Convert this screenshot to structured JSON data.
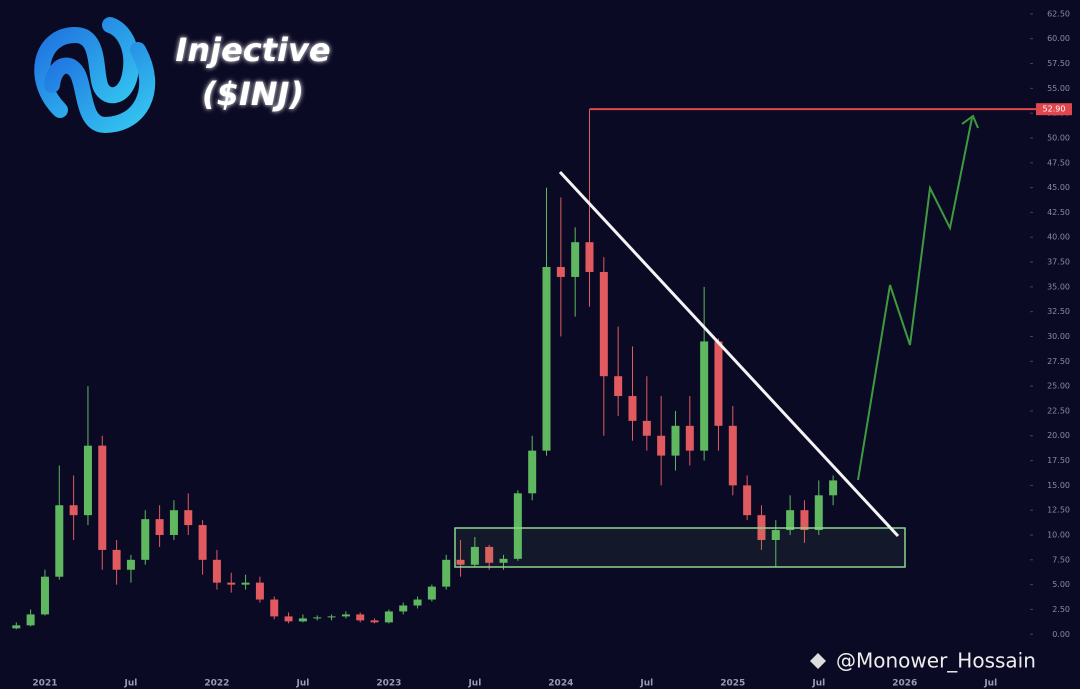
{
  "chart_data": {
    "type": "candlestick",
    "title": "Injective",
    "subtitle": "($INJ)",
    "watermark": "@Monower_Hossain",
    "up_color": "#5fb85f",
    "down_color": "#e05a5f",
    "categories": [
      null,
      null,
      "2021",
      null,
      null,
      null,
      null,
      null,
      "Jul",
      null,
      null,
      null,
      null,
      null,
      "2022",
      null,
      null,
      null,
      null,
      null,
      "Jul",
      null,
      null,
      null,
      null,
      null,
      "2023",
      null,
      null,
      null,
      null,
      null,
      "Jul",
      null,
      null,
      null,
      null,
      null,
      "2024",
      null,
      null,
      null,
      null,
      null,
      "Jul",
      null,
      null,
      null,
      null,
      null,
      "2025",
      null,
      null,
      null,
      null,
      null,
      "Jul",
      null,
      null,
      null,
      null,
      null,
      "2026",
      null,
      null,
      null,
      null,
      null,
      "Jul"
    ],
    "open": [
      0.6,
      0.9,
      2.0,
      5.8,
      13.0,
      12.0,
      19.0,
      8.5,
      6.5,
      7.5,
      11.6,
      10.0,
      12.5,
      11.0,
      7.5,
      5.2,
      5.0,
      5.2,
      3.5,
      1.8,
      1.3,
      1.6,
      1.7,
      1.8,
      2.0,
      1.4,
      1.2,
      2.3,
      2.9,
      3.5,
      4.8,
      7.5,
      7.0,
      8.8,
      7.2,
      7.6,
      14.2,
      18.5,
      37.0,
      36.0,
      39.5,
      36.5,
      26.0,
      24.0,
      21.5,
      20.0,
      18.0,
      21.0,
      18.5,
      29.5,
      21.0,
      15.0,
      12.0,
      9.5,
      10.5,
      12.5,
      10.5,
      14.0,
      null,
      null,
      null,
      null,
      null,
      null,
      null,
      null,
      null,
      null,
      null
    ],
    "high": [
      1.2,
      2.5,
      6.5,
      17.0,
      16.0,
      25.0,
      20.0,
      9.5,
      8.0,
      12.5,
      13.0,
      13.5,
      14.2,
      11.5,
      8.5,
      6.2,
      6.0,
      5.8,
      3.8,
      2.2,
      2.0,
      1.9,
      2.0,
      2.3,
      2.2,
      1.6,
      2.5,
      3.2,
      3.8,
      5.0,
      8.0,
      9.5,
      9.8,
      9.0,
      8.0,
      14.5,
      20.0,
      45.0,
      44.0,
      41.0,
      52.9,
      38.0,
      31.0,
      29.0,
      26.0,
      24.0,
      22.5,
      24.0,
      35.0,
      29.8,
      23.0,
      16.0,
      13.0,
      11.5,
      14.0,
      13.5,
      15.5,
      16.0,
      null,
      null,
      null,
      null,
      null,
      null,
      null,
      null,
      null,
      null,
      null
    ],
    "low": [
      0.5,
      0.8,
      1.9,
      5.5,
      9.5,
      11.0,
      6.5,
      5.0,
      5.2,
      7.0,
      8.8,
      9.5,
      10.0,
      6.0,
      4.5,
      4.2,
      4.5,
      3.2,
      1.5,
      1.1,
      1.2,
      1.4,
      1.4,
      1.6,
      1.2,
      1.1,
      1.1,
      2.0,
      2.6,
      3.3,
      4.5,
      5.8,
      6.8,
      6.5,
      6.5,
      7.4,
      13.5,
      18.0,
      30.0,
      32.0,
      33.0,
      20.0,
      22.0,
      19.5,
      18.5,
      15.0,
      16.5,
      17.0,
      17.5,
      18.5,
      14.0,
      11.5,
      8.5,
      6.8,
      10.0,
      9.2,
      10.0,
      13.0,
      null,
      null,
      null,
      null,
      null,
      null,
      null,
      null,
      null,
      null,
      null
    ],
    "close": [
      0.9,
      2.0,
      5.8,
      13.0,
      12.0,
      19.0,
      8.5,
      6.5,
      7.5,
      11.6,
      10.0,
      12.5,
      11.0,
      7.5,
      5.2,
      5.0,
      5.2,
      3.5,
      1.8,
      1.3,
      1.6,
      1.7,
      1.8,
      2.0,
      1.4,
      1.2,
      2.3,
      2.9,
      3.5,
      4.8,
      7.5,
      7.0,
      8.8,
      7.2,
      7.6,
      14.2,
      18.5,
      37.0,
      36.0,
      39.5,
      36.5,
      26.0,
      24.0,
      21.5,
      20.0,
      18.0,
      21.0,
      18.5,
      29.5,
      21.0,
      15.0,
      12.0,
      9.5,
      10.5,
      12.5,
      10.5,
      14.0,
      15.5,
      null,
      null,
      null,
      null,
      null,
      null,
      null,
      null,
      null,
      null,
      null
    ],
    "ylim": [
      -3.6,
      63.9
    ],
    "yticks": [
      {
        "value": 0,
        "label": "0.00"
      },
      {
        "value": 2.5,
        "label": "2.50"
      },
      {
        "value": 5,
        "label": "5.00"
      },
      {
        "value": 7.5,
        "label": "7.50"
      },
      {
        "value": 10,
        "label": "10.00"
      },
      {
        "value": 12.5,
        "label": "12.50"
      },
      {
        "value": 15,
        "label": "15.00"
      },
      {
        "value": 17.5,
        "label": "17.50"
      },
      {
        "value": 20,
        "label": "20.00"
      },
      {
        "value": 22.5,
        "label": "22.50"
      },
      {
        "value": 25,
        "label": "25.00"
      },
      {
        "value": 27.5,
        "label": "27.50"
      },
      {
        "value": 30,
        "label": "30.00"
      },
      {
        "value": 32.5,
        "label": "32.50"
      },
      {
        "value": 35,
        "label": "35.00"
      },
      {
        "value": 37.5,
        "label": "37.50"
      },
      {
        "value": 40,
        "label": "40.00"
      },
      {
        "value": 42.5,
        "label": "42.50"
      },
      {
        "value": 45,
        "label": "45.00"
      },
      {
        "value": 47.5,
        "label": "47.50"
      },
      {
        "value": 50,
        "label": "50.00"
      },
      {
        "value": 52.5,
        "label": "52.50"
      },
      {
        "value": 55,
        "label": "55.00"
      },
      {
        "value": 57.5,
        "label": "57.50"
      },
      {
        "value": 60,
        "label": "60.00"
      },
      {
        "value": 62.5,
        "label": "62.50"
      }
    ],
    "price_line": {
      "value": 52.9,
      "label": "52.90",
      "color": "#e0474c",
      "start_index": 40
    }
  }
}
